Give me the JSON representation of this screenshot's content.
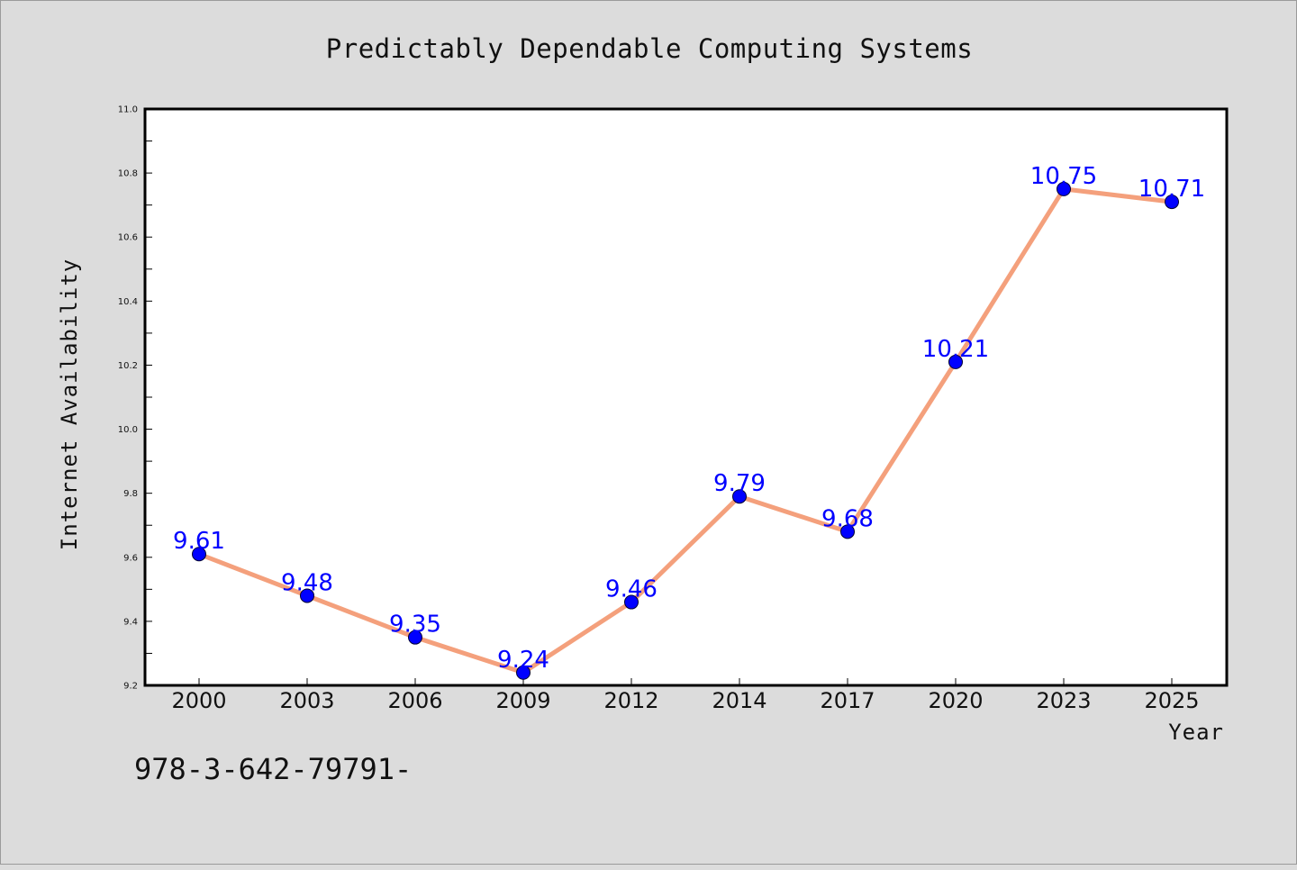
{
  "chart_data": {
    "type": "line",
    "title": "Predictably Dependable Computing Systems",
    "xlabel": "Year",
    "ylabel": "Internet Availability",
    "categories": [
      "2000",
      "2003",
      "2006",
      "2009",
      "2012",
      "2014",
      "2017",
      "2020",
      "2023",
      "2025"
    ],
    "series": [
      {
        "values": [
          9.61,
          9.48,
          9.35,
          9.24,
          9.46,
          9.79,
          9.68,
          10.21,
          10.75,
          10.71
        ],
        "line_color": "#f4a07c",
        "marker_color": "#0000ff"
      }
    ],
    "data_labels": [
      "9.61",
      "9.48",
      "9.35",
      "9.24",
      "9.46",
      "9.79",
      "9.68",
      "10.21",
      "10.75",
      "10.71"
    ],
    "ylim": [
      9.2,
      11.0
    ],
    "yticks": [
      "9.2",
      "9.4",
      "9.6",
      "9.8",
      "10.0",
      "10.2",
      "10.4",
      "10.6",
      "10.8",
      "11.0"
    ],
    "grid": false
  },
  "footer": {
    "text": "978-3-642-79791-"
  },
  "colors": {
    "background": "#dcdcdc",
    "plot_background": "#ffffff",
    "line": "#f4a07c",
    "marker": "#0000ff",
    "data_label": "#0000ff"
  }
}
